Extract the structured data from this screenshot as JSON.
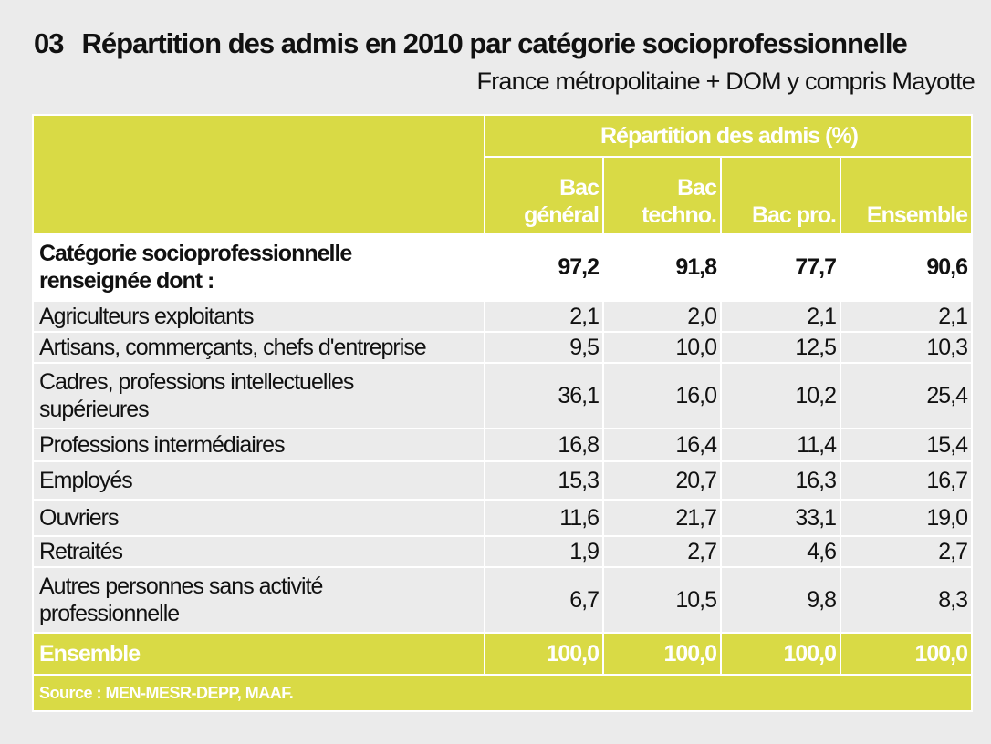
{
  "title": {
    "number": "03",
    "text": "Répartition des admis en 2010 par catégorie socioprofessionnelle",
    "subtitle": "France métropolitaine + DOM y compris Mayotte"
  },
  "table": {
    "group_header": "Répartition des admis (%)",
    "columns": [
      [
        "Bac",
        "général"
      ],
      [
        "Bac",
        "techno."
      ],
      [
        "Bac pro."
      ],
      [
        "Ensemble"
      ]
    ],
    "main_row": {
      "label_line1": "Catégorie socioprofessionnelle",
      "label_line2": "renseignée dont :",
      "values": [
        "97,2",
        "91,8",
        "77,7",
        "90,6"
      ]
    },
    "rows": [
      {
        "label": [
          "Agriculteurs exploitants"
        ],
        "values": [
          "2,1",
          "2,0",
          "2,1",
          "2,1"
        ]
      },
      {
        "label": [
          "Artisans, commerçants, chefs d'entreprise"
        ],
        "values": [
          "9,5",
          "10,0",
          "12,5",
          "10,3"
        ]
      },
      {
        "label": [
          "Cadres, professions intellectuelles",
          "supérieures"
        ],
        "values": [
          "36,1",
          "16,0",
          "10,2",
          "25,4"
        ]
      },
      {
        "label": [
          "Professions intermédiaires"
        ],
        "values": [
          "16,8",
          "16,4",
          "11,4",
          "15,4"
        ]
      },
      {
        "label": [
          "Employés"
        ],
        "values": [
          "15,3",
          "20,7",
          "16,3",
          "16,7"
        ]
      },
      {
        "label": [
          "Ouvriers"
        ],
        "values": [
          "11,6",
          "21,7",
          "33,1",
          "19,0"
        ]
      },
      {
        "label": [
          "Retraités"
        ],
        "values": [
          "1,9",
          "2,7",
          "4,6",
          "2,7"
        ]
      },
      {
        "label": [
          "Autres personnes sans activité",
          "professionnelle"
        ],
        "values": [
          "6,7",
          "10,5",
          "9,8",
          "8,3"
        ]
      }
    ],
    "total_row": {
      "label": "Ensemble",
      "values": [
        "100,0",
        "100,0",
        "100,0",
        "100,0"
      ]
    },
    "source": "Source : MEN-MESR-DEPP, MAAF."
  },
  "colors": {
    "accent": "#d9da45",
    "background": "#ebebeb"
  }
}
